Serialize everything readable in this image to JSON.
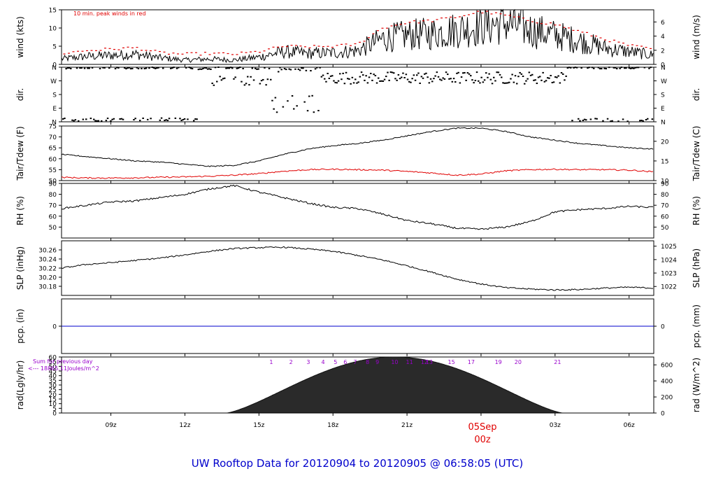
{
  "footer_title": "UW Rooftop Data for 20120904  to  20120905 @ 06:58:05  (UTC)",
  "colors": {
    "red": "#e00000",
    "blue": "#0000cc",
    "purple": "#9900cc",
    "black": "#000000"
  },
  "date_marker": {
    "day": "05Sep",
    "hour": "00z"
  },
  "chart_data": [
    {
      "type": "line",
      "name_key": "wind",
      "ylabel_left": "wind (kts)",
      "ylabel_right": "wind (m/s)",
      "ylim": [
        0,
        15
      ],
      "yticks_left": [
        0,
        5,
        10,
        15
      ],
      "yticks_right": [
        0,
        2,
        4,
        6
      ],
      "annotation": "10 min. peak winds in red",
      "x_hours": [
        0,
        1,
        2,
        3,
        4,
        5,
        6,
        7,
        8,
        9,
        10,
        11,
        12,
        13,
        14,
        15,
        16,
        17,
        18,
        19,
        20,
        21,
        22,
        23,
        24
      ],
      "series": [
        {
          "name": "wind",
          "values": [
            1.5,
            2.2,
            2.5,
            2.8,
            1.8,
            1.2,
            1.5,
            1.2,
            2.0,
            3.5,
            3.0,
            3.2,
            3.8,
            7.0,
            8.0,
            8.5,
            9.5,
            10.5,
            11.5,
            9.5,
            8.0,
            6.5,
            4.5,
            3.5,
            2.5
          ]
        },
        {
          "name": "peak",
          "values": [
            3.0,
            3.8,
            4.2,
            4.6,
            3.2,
            2.8,
            3.0,
            2.8,
            3.5,
            5.0,
            4.8,
            5.0,
            5.5,
            10.0,
            11.5,
            12.0,
            13.0,
            14.5,
            13.5,
            12.0,
            11.0,
            9.0,
            7.0,
            5.2,
            4.2
          ]
        }
      ]
    },
    {
      "type": "scatter",
      "name_key": "dir",
      "ylabel_left": "dir.",
      "ylabel_right": "dir.",
      "ytick_labels": [
        "N",
        "E",
        "S",
        "W",
        "N"
      ],
      "ylim": [
        0,
        360
      ]
    },
    {
      "type": "line",
      "name_key": "temp",
      "ylabel_left": "Tair/Tdew (F)",
      "ylabel_right": "Tair/Tdew (C)",
      "ylim": [
        50,
        75
      ],
      "yticks_left": [
        50,
        55,
        60,
        65,
        70,
        75
      ],
      "yticks_right": [
        10,
        15,
        20
      ],
      "x_hours": [
        0,
        1,
        2,
        3,
        4,
        5,
        6,
        7,
        8,
        9,
        10,
        11,
        12,
        13,
        14,
        15,
        16,
        17,
        18,
        19,
        20,
        21,
        22,
        23,
        24
      ],
      "series": [
        {
          "name": "Tair",
          "values": [
            62,
            61,
            60,
            59,
            58.5,
            57.5,
            56.5,
            57,
            59,
            62,
            64.5,
            66,
            67,
            68.5,
            70.5,
            72.5,
            74,
            74,
            72.5,
            70,
            68.5,
            67,
            66,
            65,
            64.5
          ]
        },
        {
          "name": "Tdew",
          "values": [
            51.5,
            51.2,
            51.2,
            51.3,
            51.5,
            51.7,
            52.0,
            52.5,
            53.2,
            54.3,
            55.0,
            55.2,
            55.0,
            54.8,
            54.2,
            53.5,
            52.5,
            53.0,
            54.5,
            55.0,
            55.2,
            55.0,
            55.0,
            54.8,
            54.0
          ]
        }
      ]
    },
    {
      "type": "line",
      "name_key": "rh",
      "ylabel_left": "RH (%)",
      "ylabel_right": "RH (%)",
      "ylim": [
        40,
        90
      ],
      "yticks_left": [
        50,
        60,
        70,
        80,
        90
      ],
      "yticks_right": [
        50,
        60,
        70,
        80,
        90
      ],
      "x_hours": [
        0,
        1,
        2,
        3,
        4,
        5,
        6,
        7,
        8,
        9,
        10,
        11,
        12,
        13,
        14,
        15,
        16,
        17,
        18,
        19,
        20,
        21,
        22,
        23,
        24
      ],
      "series": [
        {
          "name": "RH",
          "values": [
            67,
            70,
            73,
            74,
            77,
            80,
            85,
            88,
            82,
            77,
            72,
            68,
            67,
            62,
            56,
            53,
            49,
            48,
            50,
            55,
            64,
            66,
            67,
            69,
            68
          ]
        }
      ]
    },
    {
      "type": "line",
      "name_key": "slp",
      "ylabel_left": "SLP (inHg)",
      "ylabel_right": "SLP (hPa)",
      "ylim": [
        30.16,
        30.28
      ],
      "yticks_left": [
        30.18,
        30.2,
        30.22,
        30.24,
        30.26
      ],
      "yticks_right": [
        1022,
        1023,
        1024,
        1025
      ],
      "x_hours": [
        0,
        1,
        2,
        3,
        4,
        5,
        6,
        7,
        8,
        9,
        10,
        11,
        12,
        13,
        14,
        15,
        16,
        17,
        18,
        19,
        20,
        21,
        22,
        23,
        24
      ],
      "series": [
        {
          "name": "SLP",
          "values": [
            30.22,
            30.228,
            30.232,
            30.237,
            30.242,
            30.249,
            30.257,
            30.263,
            30.265,
            30.266,
            30.262,
            30.257,
            30.248,
            30.238,
            30.225,
            30.211,
            30.196,
            30.185,
            30.177,
            30.174,
            30.172,
            30.173,
            30.176,
            30.178,
            30.176
          ]
        }
      ]
    },
    {
      "type": "line",
      "name_key": "pcp",
      "ylabel_left": "pcp. (in)",
      "ylabel_right": "pcp. (mm)",
      "ylim": [
        -1,
        1
      ],
      "yticks_left": [
        0
      ],
      "yticks_right": [
        0
      ],
      "series": [
        {
          "name": "pcp",
          "values": [
            0,
            0
          ]
        }
      ]
    },
    {
      "type": "area",
      "name_key": "rad",
      "ylabel_left": "rad(Lgly/hr)",
      "ylabel_right": "rad (W/m^2)",
      "ylim": [
        0,
        60
      ],
      "yticks_left": [
        0,
        5,
        10,
        15,
        20,
        25,
        30,
        35,
        40,
        45,
        50,
        55,
        60
      ],
      "yticks_right": [
        0,
        200,
        400,
        600
      ],
      "sum_label": "Sum for previous day",
      "sum_value": "<--- 18865.11Joules/m^2",
      "hour_ticks": [
        "1",
        "2",
        "3",
        "4",
        "5",
        "6",
        "7",
        "8",
        "9",
        "10",
        "11",
        "12",
        "13",
        "15",
        "17",
        "19",
        "20",
        "21"
      ],
      "peak": 60,
      "sunrise_hour": 6.7,
      "sunset_hour": 20.3
    }
  ],
  "x_axis": {
    "tick_labels": [
      "09z",
      "12z",
      "15z",
      "18z",
      "21z",
      "00z",
      "03z",
      "06z"
    ],
    "start_hour_utc": 7
  }
}
